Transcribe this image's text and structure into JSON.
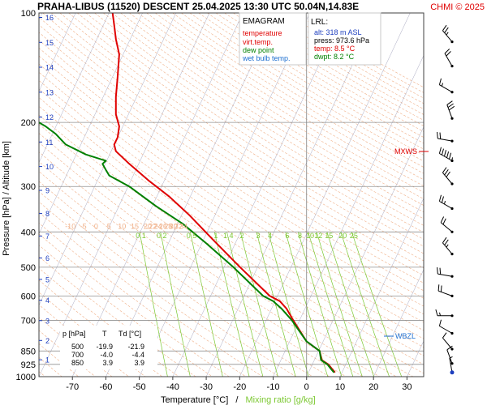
{
  "header": {
    "title": "PRAHA-LIBUS (11520)   DESCENT   25.04.2025 13:30 UTC   50.04N,14.83E",
    "copyright": "CHMI © 2025"
  },
  "legend": {
    "title": "EMAGRAM",
    "items": [
      {
        "label": "temperature",
        "color": "#e00000"
      },
      {
        "label": "virt.temp.",
        "color": "#e00000"
      },
      {
        "label": "dew point",
        "color": "#008000"
      },
      {
        "label": "wet bulb temp.",
        "color": "#1e6fd0"
      }
    ]
  },
  "lrl": {
    "title": "LRL:",
    "lines": [
      {
        "text": "alt: 318 m ASL",
        "color": "#1e3fbf"
      },
      {
        "text": "press: 973.6 hPa",
        "color": "#000000"
      },
      {
        "text": "temp: 8.5 °C",
        "color": "#e00000"
      },
      {
        "text": "dwpt: 8.2 °C",
        "color": "#008000"
      }
    ]
  },
  "table": {
    "header": {
      "p": "p [hPa]",
      "t": "T",
      "td": "Td [°C]"
    },
    "rows": [
      {
        "p": "500",
        "t": "-19.9",
        "td": "-21.9"
      },
      {
        "p": "700",
        "t": "-4.0",
        "td": "-4.4"
      },
      {
        "p": "850",
        "t": "3.9",
        "td": "3.9"
      }
    ]
  },
  "markers": {
    "mxws": "MXWS",
    "wbzl": "WBZL"
  },
  "chart_data": {
    "type": "line",
    "xlabel_temperature": "Temperature [°C]",
    "xlabel_separator": "/",
    "xlabel_mixing": "Mixing ratio [g/kg]",
    "ylabel": "Pressure [hPa]  /  Altitude [km]",
    "xlim": [
      -80,
      35
    ],
    "ylim": [
      1000,
      100
    ],
    "x_ticks": [
      -70,
      -60,
      -50,
      -40,
      -30,
      -20,
      -10,
      0,
      10,
      20,
      30
    ],
    "pressure_ticks": [
      100,
      200,
      300,
      400,
      500,
      600,
      700,
      850,
      925,
      1000
    ],
    "altitude_ticks": [
      1,
      2,
      3,
      4,
      5,
      6,
      7,
      8,
      9,
      10,
      11,
      12,
      13,
      14,
      15,
      16
    ],
    "mixing_ratio_ticks": [
      "0.1",
      "0.2",
      "0.5",
      "1",
      "1.4",
      "2",
      "3",
      "4",
      "6",
      "8",
      "10",
      "12",
      "15",
      "20",
      "25"
    ],
    "theta_ticks_200": [
      "15",
      "20",
      "22",
      "24",
      "26",
      "28",
      "30",
      "32",
      "34"
    ],
    "theta_ticks_400": [
      "-10",
      "-5",
      "0",
      "5",
      "10",
      "15",
      "20",
      "22",
      "24",
      "26",
      "28",
      "30",
      "32",
      "34"
    ],
    "colors": {
      "temperature": "#e00000",
      "dewpoint": "#008000",
      "mixing_ratio": "#7cc832",
      "theta": "#f0b088",
      "isobar": "#909090",
      "isotherm": "#a8a8c0",
      "axis_label_blue": "#1e3fbf"
    },
    "series": [
      {
        "name": "temperature",
        "points": [
          [
            8.5,
            973.6
          ],
          [
            7.5,
            950
          ],
          [
            6.5,
            925
          ],
          [
            4.5,
            900
          ],
          [
            3.9,
            850
          ],
          [
            0,
            800
          ],
          [
            -4.0,
            700
          ],
          [
            -6,
            650
          ],
          [
            -8,
            620
          ],
          [
            -11,
            600
          ],
          [
            -19.9,
            500
          ],
          [
            -28,
            420
          ],
          [
            -35,
            360
          ],
          [
            -41,
            320
          ],
          [
            -47,
            290
          ],
          [
            -53,
            260
          ],
          [
            -57,
            240
          ],
          [
            -57.5,
            230
          ],
          [
            -56.5,
            220
          ],
          [
            -56,
            205
          ],
          [
            -57,
            190
          ],
          [
            -57,
            170
          ],
          [
            -56.5,
            150
          ],
          [
            -56,
            130
          ],
          [
            -57,
            118
          ],
          [
            -57.5,
            108
          ],
          [
            -58,
            100
          ]
        ]
      },
      {
        "name": "dewpoint",
        "points": [
          [
            8.2,
            973.6
          ],
          [
            7.2,
            950
          ],
          [
            6.2,
            925
          ],
          [
            4.3,
            900
          ],
          [
            3.9,
            850
          ],
          [
            0,
            800
          ],
          [
            -4.4,
            700
          ],
          [
            -7.5,
            650
          ],
          [
            -10,
            620
          ],
          [
            -13,
            600
          ],
          [
            -21.9,
            500
          ],
          [
            -30,
            430
          ],
          [
            -37,
            380
          ],
          [
            -45,
            340
          ],
          [
            -53,
            300
          ],
          [
            -59,
            280
          ],
          [
            -60,
            270
          ],
          [
            -61,
            260
          ],
          [
            -60,
            255
          ],
          [
            -66,
            245
          ],
          [
            -72,
            230
          ],
          [
            -75,
            215
          ],
          [
            -78,
            205
          ],
          [
            -80,
            200
          ]
        ]
      }
    ],
    "wind_barbs": [
      {
        "pressure": 120,
        "direction_deg": 320,
        "speed_kt": 25
      },
      {
        "pressure": 140,
        "direction_deg": 330,
        "speed_kt": 20
      },
      {
        "pressure": 165,
        "direction_deg": 300,
        "speed_kt": 15
      },
      {
        "pressure": 195,
        "direction_deg": 340,
        "speed_kt": 30
      },
      {
        "pressure": 225,
        "direction_deg": 280,
        "speed_kt": 20
      },
      {
        "pressure": 255,
        "direction_deg": 300,
        "speed_kt": 55
      },
      {
        "pressure": 295,
        "direction_deg": 320,
        "speed_kt": 30
      },
      {
        "pressure": 345,
        "direction_deg": 300,
        "speed_kt": 25
      },
      {
        "pressure": 400,
        "direction_deg": 310,
        "speed_kt": 20
      },
      {
        "pressure": 460,
        "direction_deg": 320,
        "speed_kt": 25
      },
      {
        "pressure": 530,
        "direction_deg": 280,
        "speed_kt": 20
      },
      {
        "pressure": 600,
        "direction_deg": 290,
        "speed_kt": 20
      },
      {
        "pressure": 680,
        "direction_deg": 270,
        "speed_kt": 15
      },
      {
        "pressure": 760,
        "direction_deg": 300,
        "speed_kt": 10
      },
      {
        "pressure": 840,
        "direction_deg": 320,
        "speed_kt": 10
      },
      {
        "pressure": 920,
        "direction_deg": 340,
        "speed_kt": 10
      },
      {
        "pressure": 973.6,
        "direction_deg": 350,
        "speed_kt": 5
      }
    ]
  }
}
